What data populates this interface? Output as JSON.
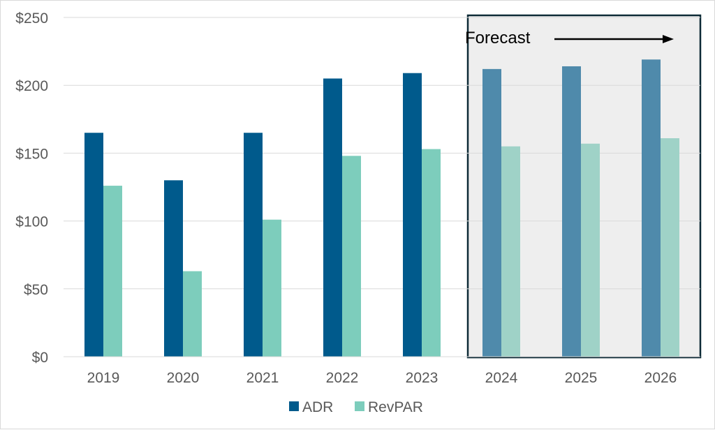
{
  "chart_data": {
    "type": "bar",
    "categories": [
      "2019",
      "2020",
      "2021",
      "2022",
      "2023",
      "2024",
      "2025",
      "2026"
    ],
    "series": [
      {
        "name": "ADR",
        "values": [
          165,
          130,
          165,
          205,
          209,
          212,
          214,
          219
        ]
      },
      {
        "name": "RevPAR",
        "values": [
          126,
          63,
          101,
          148,
          153,
          155,
          157,
          161
        ]
      }
    ],
    "ylim": [
      0,
      250
    ],
    "yticks": [
      0,
      50,
      100,
      150,
      200,
      250
    ],
    "ytick_labels": [
      "$0",
      "$50",
      "$100",
      "$150",
      "$200",
      "$250"
    ],
    "title": "",
    "xlabel": "",
    "ylabel": "",
    "grid": true,
    "legend_position": "bottom-center",
    "forecast": {
      "label": "Forecast",
      "start_category": "2024",
      "end_category": "2026"
    },
    "colors": {
      "adr": "#005a8c",
      "revpar": "#7dcdbc",
      "adr_forecast": "#4f8aab",
      "revpar_forecast": "#9fd2c7",
      "forecast_bg": "#eeeeee",
      "forecast_border": "#0d2a36",
      "grid": "#d9d9d9",
      "tick": "#595959"
    }
  }
}
